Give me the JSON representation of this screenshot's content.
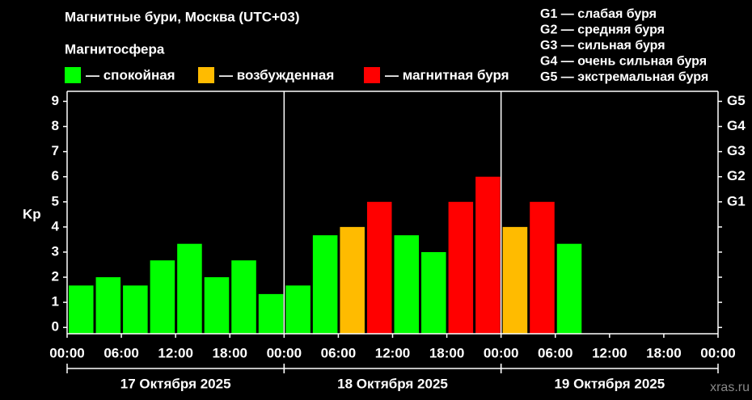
{
  "chart_data": {
    "type": "bar",
    "title": "Магнитные бури, Москва (UTC+03)",
    "legend_title": "Магнитосфера",
    "legend": [
      {
        "name": "— спокойная",
        "color": "#00ff00"
      },
      {
        "name": "— возбужденная",
        "color": "#ffbb00"
      },
      {
        "name": "— магнитная буря",
        "color": "#ff0000"
      }
    ],
    "storm_scale": [
      "G1 — слабая буря",
      "G2 — средняя буря",
      "G3 — сильная буря",
      "G4 — очень сильная буря",
      "G5 — экстремальная буря"
    ],
    "y_label": "Kp",
    "x": [
      0,
      3,
      6,
      9,
      12,
      15,
      18,
      21,
      24,
      27,
      30,
      33,
      36,
      39,
      42,
      45,
      48,
      51,
      54
    ],
    "bar_width": 3,
    "values": [
      1.67,
      2,
      1.67,
      2.67,
      3.33,
      2,
      2.67,
      1.33,
      1.67,
      3.67,
      4,
      5,
      3.67,
      3,
      5,
      6,
      4,
      5,
      3.33
    ],
    "colors": [
      "#00ff00",
      "#00ff00",
      "#00ff00",
      "#00ff00",
      "#00ff00",
      "#00ff00",
      "#00ff00",
      "#00ff00",
      "#00ff00",
      "#00ff00",
      "#ffbb00",
      "#ff0000",
      "#00ff00",
      "#00ff00",
      "#ff0000",
      "#ff0000",
      "#ffbb00",
      "#ff0000",
      "#00ff00"
    ],
    "xlim": [
      0,
      72
    ],
    "xticks": [
      {
        "value": 0,
        "label": "00:00"
      },
      {
        "value": 6,
        "label": "06:00"
      },
      {
        "value": 12,
        "label": "12:00"
      },
      {
        "value": 18,
        "label": "18:00"
      },
      {
        "value": 24,
        "label": "00:00"
      },
      {
        "value": 30,
        "label": "06:00"
      },
      {
        "value": 36,
        "label": "12:00"
      },
      {
        "value": 42,
        "label": "18:00"
      },
      {
        "value": 48,
        "label": "00:00"
      },
      {
        "value": 54,
        "label": "06:00"
      },
      {
        "value": 60,
        "label": "12:00"
      },
      {
        "value": 66,
        "label": "18:00"
      },
      {
        "value": 72,
        "label": "00:00"
      }
    ],
    "days": [
      {
        "start": 0,
        "end": 24,
        "label": "17 Октября 2025"
      },
      {
        "start": 24,
        "end": 48,
        "label": "18 Октября 2025"
      },
      {
        "start": 48,
        "end": 72,
        "label": "19 Октября 2025"
      }
    ],
    "ylim": [
      -0.25,
      9.4
    ],
    "yticks": [
      0,
      1,
      2,
      3,
      4,
      5,
      6,
      7,
      8,
      9
    ],
    "y2lim": [
      -0.25,
      9.4
    ],
    "y2ticks": [
      {
        "value": 5,
        "label": "G1"
      },
      {
        "value": 6,
        "label": "G2"
      },
      {
        "value": 7,
        "label": "G3"
      },
      {
        "value": 8,
        "label": "G4"
      },
      {
        "value": 9,
        "label": "G5"
      }
    ],
    "watermark": "xras.ru"
  }
}
